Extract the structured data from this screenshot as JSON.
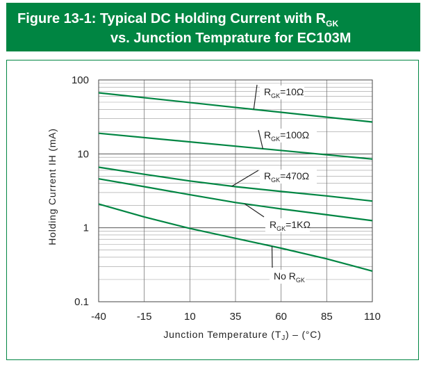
{
  "header": {
    "title_line1": "Figure 13-1: Typical DC Holding Current with R",
    "title_line1_sub": "GK",
    "title_line2": "vs. Junction Temprature for EC103M",
    "color": "#008542"
  },
  "chart_data": {
    "type": "line",
    "x_ticks": [
      "-40",
      "-15",
      "10",
      "35",
      "60",
      "85",
      "110"
    ],
    "y_ticks": [
      "100",
      "10",
      "1",
      "0.1"
    ],
    "xlim": [
      -40,
      110
    ],
    "ylim": [
      0.1,
      100
    ],
    "y_scale": "log",
    "grid": true,
    "xlabel": "Junction Temperature (TJ) – (°C)",
    "xlabel_parts": [
      "Junction Temperature (T",
      "J",
      ") – (°C)"
    ],
    "ylabel": "Holding Current IH (mA)",
    "line_color": "#008542",
    "series": [
      {
        "name": "RGK=10Ω",
        "label_main": "R",
        "label_sub": "GK",
        "label_rest": "=10Ω",
        "x": [
          -40,
          110
        ],
        "y": [
          67,
          27
        ]
      },
      {
        "name": "RGK=100Ω",
        "label_main": "R",
        "label_sub": "GK",
        "label_rest": "=100Ω",
        "x": [
          -40,
          110
        ],
        "y": [
          19,
          8.5
        ]
      },
      {
        "name": "RGK=470Ω",
        "label_main": "R",
        "label_sub": "GK",
        "label_rest": "=470Ω",
        "x": [
          -40,
          -15,
          10,
          35,
          60,
          85,
          110
        ],
        "y": [
          6.6,
          5.3,
          4.3,
          3.6,
          3.1,
          2.7,
          2.3
        ]
      },
      {
        "name": "RGK=1KΩ",
        "label_main": "R",
        "label_sub": "GK",
        "label_rest": "=1KΩ",
        "x": [
          -40,
          -15,
          10,
          35,
          60,
          85,
          110
        ],
        "y": [
          4.6,
          3.6,
          2.8,
          2.2,
          1.8,
          1.5,
          1.25
        ]
      },
      {
        "name": "No RGK",
        "label_main": "No R",
        "label_sub": "GK",
        "label_rest": "",
        "x": [
          -40,
          -15,
          10,
          35,
          60,
          85,
          110
        ],
        "y": [
          2.1,
          1.4,
          0.98,
          0.72,
          0.53,
          0.38,
          0.26
        ]
      }
    ]
  }
}
